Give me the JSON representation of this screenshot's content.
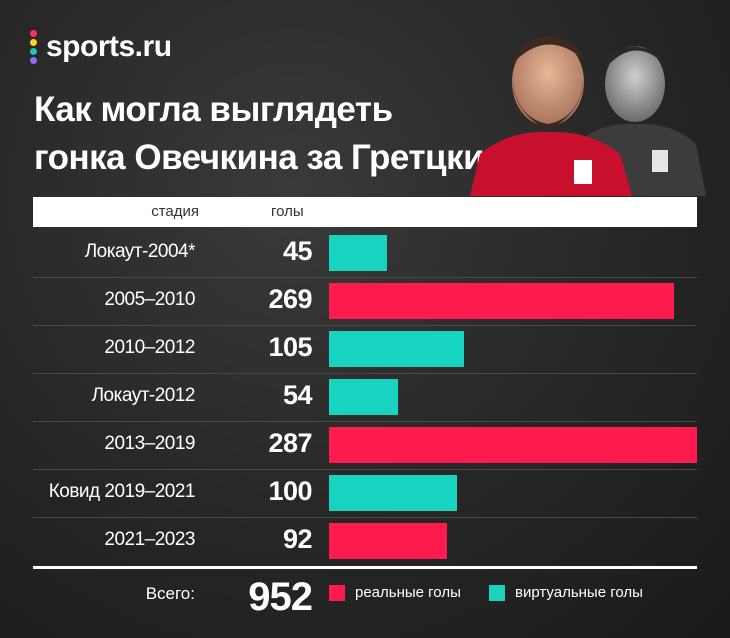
{
  "brand": {
    "name": "sports.ru",
    "dot_colors": [
      "#ff2f64",
      "#ffd21f",
      "#19c7b4",
      "#8f6cff"
    ]
  },
  "title_lines": [
    "Как могла выглядеть",
    "гонка Овечкина за Гретцки"
  ],
  "chart_data": {
    "type": "bar",
    "orientation": "horizontal",
    "columns": {
      "stage": "стадия",
      "goals": "голы"
    },
    "categories": [
      "Локаут-2004*",
      "2005–2010",
      "2010–2012",
      "Локаут-2012",
      "2013–2019",
      "Ковид 2019–2021",
      "2021–2023"
    ],
    "values": [
      45,
      269,
      105,
      54,
      287,
      100,
      92
    ],
    "kind": [
      "virtual",
      "real",
      "virtual",
      "virtual",
      "real",
      "virtual",
      "real"
    ],
    "xlim": [
      0,
      287
    ],
    "grid": false,
    "total": {
      "label": "Всего:",
      "value": 952
    },
    "legend": [
      {
        "key": "real",
        "label": "реальные голы",
        "color": "#ff1b4d"
      },
      {
        "key": "virtual",
        "label": "виртуальные голы",
        "color": "#17d4c0"
      }
    ],
    "legend_position": "bottom"
  }
}
